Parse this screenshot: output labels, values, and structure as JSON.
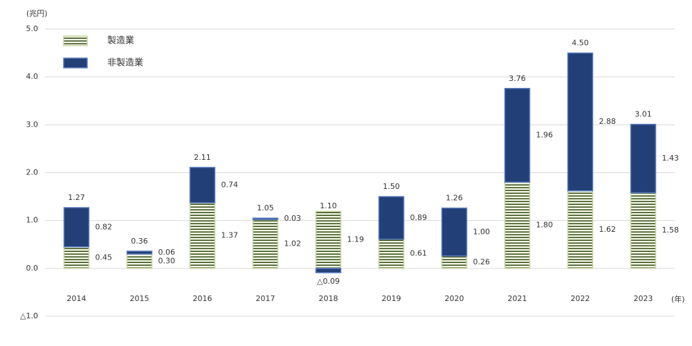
{
  "chart_data": {
    "type": "stacked_bar",
    "y_label": "(兆円)",
    "x_label": "(年)",
    "categories": [
      "2014",
      "2015",
      "2016",
      "2017",
      "2018",
      "2019",
      "2020",
      "2021",
      "2022",
      "2023"
    ],
    "series": [
      {
        "name": "製造業",
        "color": "#2f4a14",
        "values": [
          0.45,
          0.3,
          1.37,
          1.02,
          1.19,
          0.61,
          0.26,
          1.8,
          1.62,
          1.58
        ],
        "value_labels": [
          "0.45",
          "0.30",
          "1.37",
          "1.02",
          "1.19",
          "0.61",
          "0.26",
          "1.80",
          "1.62",
          "1.58"
        ]
      },
      {
        "name": "非製造業",
        "color": "#223f78",
        "values": [
          0.82,
          0.06,
          0.74,
          0.03,
          -0.09,
          0.89,
          1.0,
          1.96,
          2.88,
          1.43
        ],
        "value_labels": [
          "0.82",
          "0.06",
          "0.74",
          "0.03",
          "△0.09",
          "0.89",
          "1.00",
          "1.96",
          "2.88",
          "1.43"
        ]
      }
    ],
    "totals": {
      "values": [
        1.27,
        0.36,
        2.11,
        1.05,
        1.1,
        1.5,
        1.26,
        3.76,
        4.5,
        3.01
      ],
      "value_labels": [
        "1.27",
        "0.36",
        "2.11",
        "1.05",
        "1.10",
        "1.50",
        "1.26",
        "3.76",
        "4.50",
        "3.01"
      ]
    },
    "ylim": [
      -1,
      5
    ],
    "yticks": [
      {
        "value": 5,
        "label": "5.0"
      },
      {
        "value": 4,
        "label": "4.0"
      },
      {
        "value": 3,
        "label": "3.0"
      },
      {
        "value": 2,
        "label": "2.0"
      },
      {
        "value": 1,
        "label": "1.0"
      },
      {
        "value": 0,
        "label": "0.0"
      },
      {
        "value": -1,
        "label": "△1.0"
      }
    ],
    "grid": true
  }
}
